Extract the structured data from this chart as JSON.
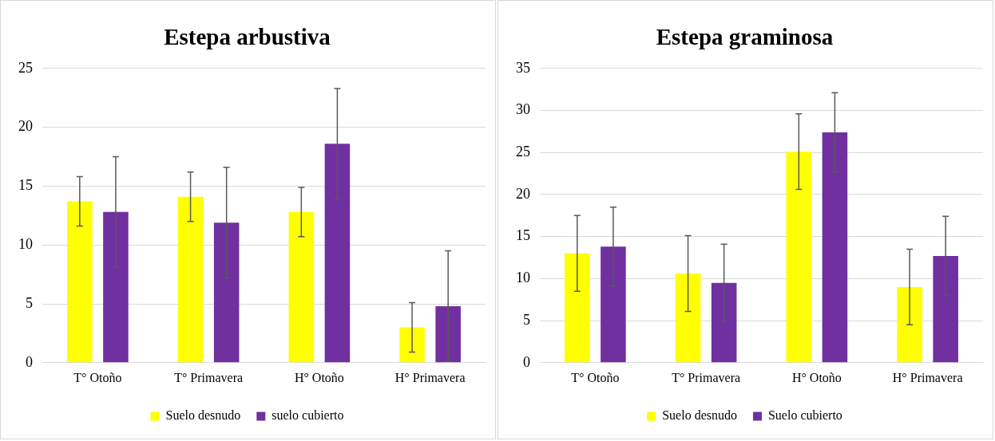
{
  "chart_data": [
    {
      "type": "bar",
      "title": "Estepa arbustiva",
      "categories": [
        "T° Otoño",
        "T° Primavera",
        "H° Otoño",
        "H° Primavera"
      ],
      "series": [
        {
          "name": "Suelo desnudo",
          "color": "#ffff00",
          "values": [
            13.7,
            14.1,
            12.8,
            3.0
          ],
          "errors": [
            2.1,
            2.1,
            2.1,
            2.1
          ]
        },
        {
          "name": "suelo cubierto",
          "color": "#7030a0",
          "values": [
            12.8,
            11.9,
            18.6,
            4.8
          ],
          "errors": [
            4.7,
            4.7,
            4.7,
            4.7
          ]
        }
      ],
      "ylim": [
        0,
        25
      ],
      "yticks": [
        0,
        5,
        10,
        15,
        20,
        25
      ],
      "grid": "y",
      "legend": "bottom"
    },
    {
      "type": "bar",
      "title": "Estepa graminosa",
      "categories": [
        "T° Otoño",
        "T° Primavera",
        "H° Otoño",
        "H° Primavera"
      ],
      "series": [
        {
          "name": "Suelo desnudo",
          "color": "#ffff00",
          "values": [
            13.0,
            10.6,
            25.1,
            9.0
          ],
          "errors": [
            4.5,
            4.5,
            4.5,
            4.5
          ]
        },
        {
          "name": "Suelo cubierto",
          "color": "#7030a0",
          "values": [
            13.8,
            9.5,
            27.4,
            12.7
          ],
          "errors": [
            4.7,
            4.6,
            4.7,
            4.7
          ]
        }
      ],
      "ylim": [
        0,
        35
      ],
      "yticks": [
        0,
        5,
        10,
        15,
        20,
        25,
        30,
        35
      ],
      "grid": "y",
      "legend": "bottom"
    }
  ]
}
